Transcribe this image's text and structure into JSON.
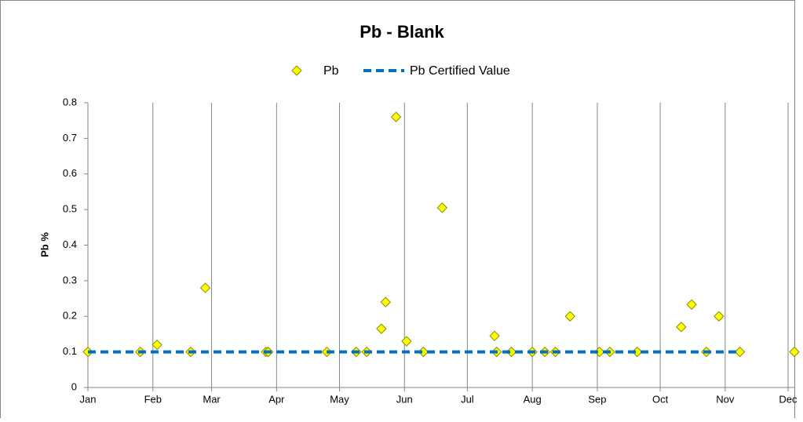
{
  "chart_data": {
    "type": "scatter",
    "title": "Pb - Blank",
    "y_label": "Pb %",
    "xlim": [
      0,
      337
    ],
    "ylim": [
      0,
      0.8
    ],
    "xticks": [
      {
        "value": 0,
        "label": "Jan"
      },
      {
        "value": 31,
        "label": "Feb"
      },
      {
        "value": 59,
        "label": "Mar"
      },
      {
        "value": 90,
        "label": "Apr"
      },
      {
        "value": 120,
        "label": "May"
      },
      {
        "value": 151,
        "label": "Jun"
      },
      {
        "value": 181,
        "label": "Jul"
      },
      {
        "value": 212,
        "label": "Aug"
      },
      {
        "value": 243,
        "label": "Sep"
      },
      {
        "value": 273,
        "label": "Oct"
      },
      {
        "value": 304,
        "label": "Nov"
      },
      {
        "value": 334,
        "label": "Dec"
      }
    ],
    "yticks": [
      0,
      0.1,
      0.2,
      0.3,
      0.4,
      0.5,
      0.6,
      0.7,
      0.8
    ],
    "grid": "x",
    "legend": "top",
    "series": [
      {
        "name": "Pb",
        "style": "marker",
        "color": "#ffff00",
        "edge_color": "#8c8c00",
        "x": [
          0,
          25,
          33,
          49,
          56,
          85,
          86,
          114,
          128,
          133,
          140,
          142,
          147,
          152,
          160,
          169,
          194,
          195,
          202,
          212,
          218,
          223,
          230,
          244,
          249,
          262,
          283,
          288,
          295,
          301,
          311,
          337
        ],
        "values": [
          0.1,
          0.1,
          0.12,
          0.1,
          0.28,
          0.1,
          0.1,
          0.1,
          0.1,
          0.1,
          0.165,
          0.24,
          0.76,
          0.13,
          0.1,
          0.505,
          0.145,
          0.1,
          0.1,
          0.1,
          0.1,
          0.1,
          0.2,
          0.1,
          0.1,
          0.1,
          0.17,
          0.233,
          0.1,
          0.2,
          0.1,
          0.1
        ]
      },
      {
        "name": "Pb Certified Value",
        "style": "dashed-line",
        "color": "#0070c0",
        "x": [
          0,
          311
        ],
        "values": [
          0.1,
          0.1
        ]
      }
    ]
  }
}
